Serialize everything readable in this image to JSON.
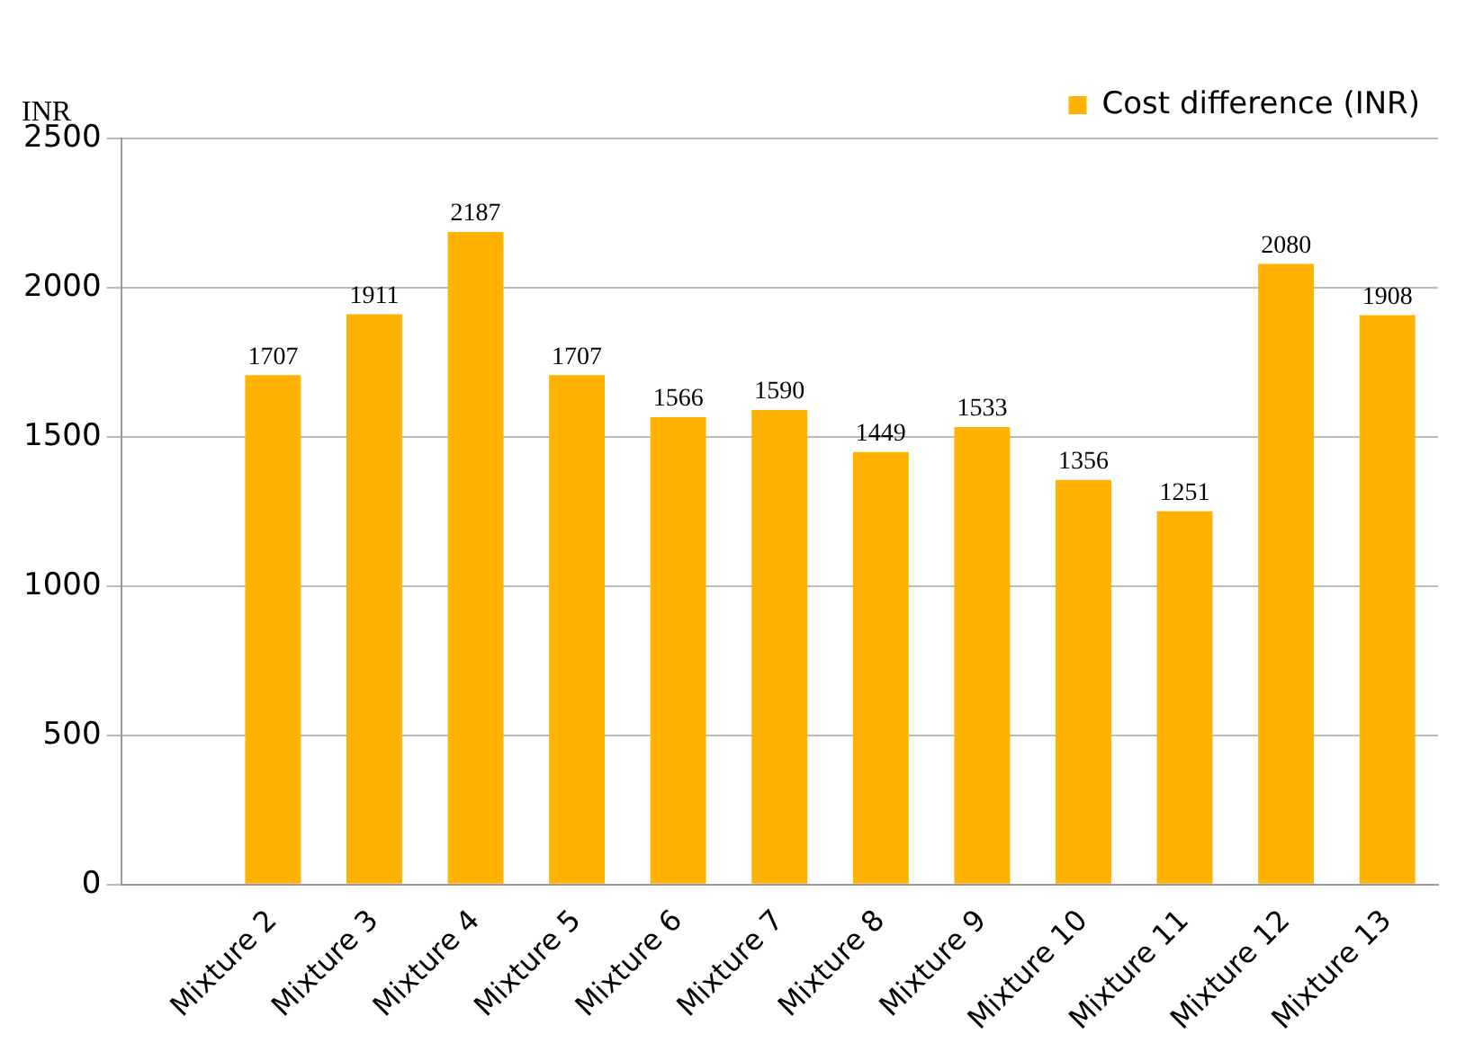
{
  "chart_data": {
    "type": "bar",
    "ylabel": "INR",
    "categories": [
      null,
      "Mixture 2",
      "Mixture 3",
      "Mixture 4",
      "Mixture 5",
      "Mixture 6",
      "Mixture 7",
      "Mixture 8",
      "Mixture 9",
      "Mixture 10",
      "Mixture 11",
      "Mixture 12",
      "Mixture 13"
    ],
    "series": [
      {
        "name": "Cost difference (INR)",
        "color": "#ffb300",
        "values": [
          null,
          1707,
          1911,
          2187,
          1707,
          1566,
          1590,
          1449,
          1533,
          1356,
          1251,
          2080,
          1908
        ]
      }
    ],
    "ylim": [
      0,
      2500
    ],
    "yticks": [
      0,
      500,
      1000,
      1500,
      2000,
      2500
    ],
    "grid": "y",
    "legend": "top right",
    "data_labels": true
  }
}
